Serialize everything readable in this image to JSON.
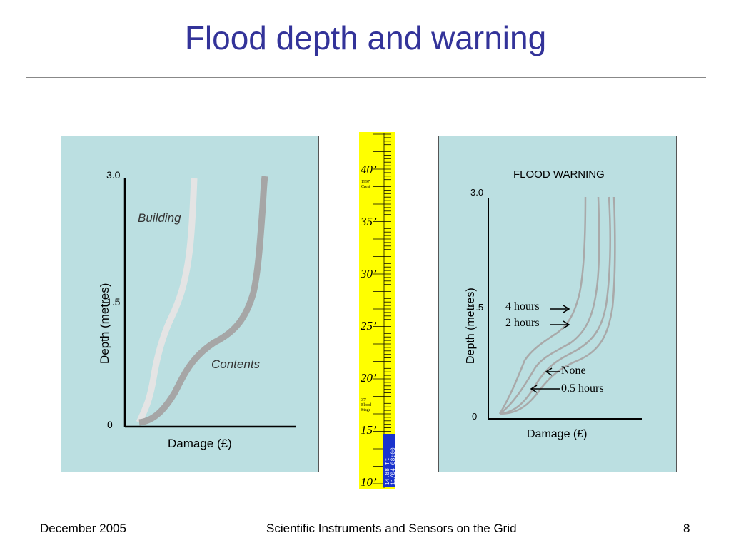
{
  "slide": {
    "title": "Flood depth and warning",
    "footer_left": "December 2005",
    "footer_center": "Scientific Instruments and Sensors on the Grid",
    "page_number": "8"
  },
  "left_chart": {
    "y_label": "Depth     (metres)",
    "x_label": "Damage  (£)",
    "y_ticks": [
      "3.0",
      "1.5",
      "0"
    ],
    "curve_labels": [
      "Building",
      "Contents"
    ]
  },
  "right_chart": {
    "title": "FLOOD WARNING",
    "y_label": "Depth     (metres)",
    "x_label": "Damage  (£)",
    "y_ticks": [
      "3.0",
      "1.5",
      "0"
    ],
    "curve_labels": [
      "4 hours",
      "2 hours",
      "None",
      "0.5 hours"
    ]
  },
  "gauge": {
    "color": "#ffff00",
    "labels": [
      "40’",
      "35’",
      "30’",
      "25’",
      "20’",
      "15’",
      "10’"
    ],
    "crest_note": [
      "1997",
      "Crest"
    ],
    "flood_note": [
      "37'",
      "Flood",
      "Stage"
    ],
    "reading_line1": "14.88 ft",
    "reading_line2": "11/04 08:00"
  },
  "colors": {
    "title": "#333399",
    "panel": "#bbdfe1",
    "building_curve": "#e4e4e4",
    "contents_curve": "#a6a6a6",
    "warning_curves": "#a9a9a9",
    "gauge_tag": "#1a33cc"
  }
}
